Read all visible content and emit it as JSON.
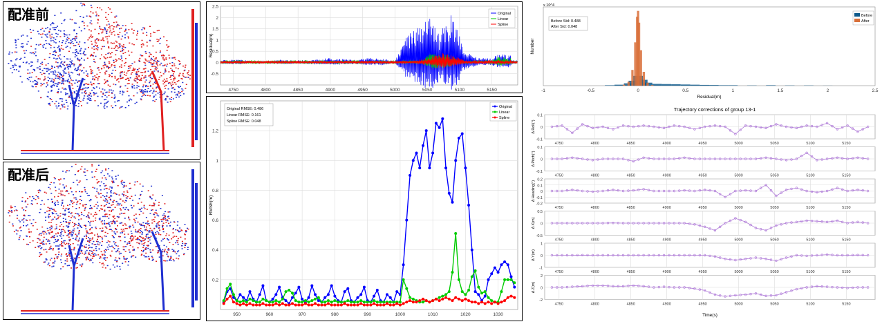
{
  "left_panels": {
    "top_label": "配准前",
    "bottom_label": "配准后",
    "colors": {
      "red": "#e02020",
      "blue": "#1f2fd0"
    }
  },
  "chart_data": [
    {
      "id": "residual-timeseries",
      "type": "line",
      "ylabel": "Residual(m)",
      "ylim": [
        -1,
        2.5
      ],
      "yticks": [
        -0.5,
        0,
        0.5,
        1,
        1.5,
        2,
        2.5
      ],
      "xlim": [
        4730,
        5190
      ],
      "xticks": [
        4750,
        4800,
        4850,
        4900,
        4950,
        5000,
        5050,
        5100,
        5150
      ],
      "legend": [
        "Original",
        "Linear",
        "Spline"
      ],
      "legend_position": "top-right",
      "colors": {
        "Original": "#0000ff",
        "Linear": "#00cc00",
        "Spline": "#ff0000"
      },
      "series": [
        {
          "name": "Original",
          "envelope": [
            [
              4730,
              0.1
            ],
            [
              4760,
              0.15
            ],
            [
              4780,
              0.05
            ],
            [
              4800,
              0.05
            ],
            [
              4820,
              0.12
            ],
            [
              4840,
              0.1
            ],
            [
              4860,
              0.1
            ],
            [
              4880,
              0.15
            ],
            [
              4900,
              0.2
            ],
            [
              4920,
              0.15
            ],
            [
              4940,
              0.12
            ],
            [
              4960,
              0.2
            ],
            [
              4980,
              0.2
            ],
            [
              5000,
              0.05
            ],
            [
              5020,
              1.3
            ],
            [
              5040,
              1.7
            ],
            [
              5050,
              2.1
            ],
            [
              5060,
              2.0
            ],
            [
              5070,
              1.3
            ],
            [
              5080,
              1.9
            ],
            [
              5090,
              2.2
            ],
            [
              5100,
              1.3
            ],
            [
              5110,
              0.5
            ],
            [
              5130,
              0.2
            ],
            [
              5150,
              0.2
            ],
            [
              5160,
              0.4
            ],
            [
              5180,
              0.35
            ]
          ]
        },
        {
          "name": "Linear",
          "envelope": [
            [
              4730,
              0.1
            ],
            [
              5020,
              0.1
            ],
            [
              5040,
              0.1
            ],
            [
              5060,
              0.5
            ],
            [
              5080,
              0.4
            ],
            [
              5100,
              0.1
            ],
            [
              5140,
              0.1
            ],
            [
              5160,
              0.25
            ],
            [
              5180,
              0.2
            ]
          ]
        },
        {
          "name": "Spline",
          "envelope": [
            [
              4730,
              0.08
            ],
            [
              5030,
              0.08
            ],
            [
              5050,
              0.2
            ],
            [
              5070,
              0.45
            ],
            [
              5090,
              0.3
            ],
            [
              5110,
              0.1
            ],
            [
              5180,
              0.12
            ]
          ]
        }
      ]
    },
    {
      "id": "rmse-epoch",
      "type": "line",
      "ylabel": "RMSE(m)",
      "ylim": [
        0,
        1.4
      ],
      "yticks": [
        0.2,
        0.4,
        0.6,
        0.8,
        1,
        1.2
      ],
      "xlim": [
        945,
        1036
      ],
      "xticks": [
        950,
        960,
        970,
        980,
        990,
        1000,
        1010,
        1020,
        1030
      ],
      "legend": [
        "Original",
        "Linear",
        "Spline"
      ],
      "legend_position": "top-right",
      "annotation": [
        "Original RMSE: 0.486",
        "Linear  RMSE: 0.161",
        "Spline  RMSE: 0.048"
      ],
      "colors": {
        "Original": "#0000ff",
        "Linear": "#00cc00",
        "Spline": "#ff0000"
      },
      "x": [
        946,
        947,
        948,
        949,
        950,
        951,
        952,
        953,
        954,
        955,
        956,
        957,
        958,
        959,
        960,
        961,
        962,
        963,
        964,
        965,
        966,
        967,
        968,
        969,
        970,
        971,
        972,
        973,
        974,
        975,
        976,
        977,
        978,
        979,
        980,
        981,
        982,
        983,
        984,
        985,
        986,
        987,
        988,
        989,
        990,
        991,
        992,
        993,
        994,
        995,
        996,
        997,
        998,
        999,
        1000,
        1001,
        1002,
        1003,
        1004,
        1005,
        1006,
        1007,
        1008,
        1009,
        1010,
        1011,
        1012,
        1013,
        1014,
        1015,
        1016,
        1017,
        1018,
        1019,
        1020,
        1021,
        1022,
        1023,
        1024,
        1025,
        1026,
        1027,
        1028,
        1029,
        1030,
        1031,
        1032,
        1033,
        1034,
        1035
      ],
      "series": [
        {
          "name": "Original",
          "values": [
            0.05,
            0.12,
            0.14,
            0.08,
            0.06,
            0.1,
            0.08,
            0.06,
            0.12,
            0.07,
            0.05,
            0.1,
            0.16,
            0.06,
            0.05,
            0.07,
            0.1,
            0.15,
            0.08,
            0.06,
            0.04,
            0.08,
            0.11,
            0.15,
            0.07,
            0.05,
            0.08,
            0.16,
            0.1,
            0.06,
            0.05,
            0.08,
            0.1,
            0.16,
            0.09,
            0.06,
            0.05,
            0.12,
            0.14,
            0.06,
            0.05,
            0.08,
            0.1,
            0.15,
            0.06,
            0.05,
            0.09,
            0.13,
            0.06,
            0.05,
            0.1,
            0.08,
            0.05,
            0.12,
            0.1,
            0.3,
            0.6,
            0.9,
            1.0,
            1.05,
            0.95,
            1.1,
            1.2,
            0.95,
            1.05,
            1.25,
            1.22,
            1.28,
            0.95,
            0.78,
            0.72,
            1.0,
            1.15,
            1.18,
            0.95,
            0.7,
            0.4,
            0.12,
            0.1,
            0.06,
            0.09,
            0.2,
            0.24,
            0.28,
            0.25,
            0.3,
            0.32,
            0.3,
            0.22,
            0.15
          ]
        },
        {
          "name": "Linear",
          "values": [
            0.06,
            0.14,
            0.17,
            0.1,
            0.06,
            0.05,
            0.06,
            0.05,
            0.07,
            0.06,
            0.05,
            0.05,
            0.07,
            0.06,
            0.05,
            0.05,
            0.06,
            0.05,
            0.07,
            0.12,
            0.13,
            0.11,
            0.06,
            0.05,
            0.05,
            0.06,
            0.05,
            0.06,
            0.07,
            0.08,
            0.05,
            0.05,
            0.06,
            0.05,
            0.06,
            0.05,
            0.05,
            0.05,
            0.06,
            0.05,
            0.05,
            0.05,
            0.06,
            0.05,
            0.05,
            0.05,
            0.06,
            0.05,
            0.05,
            0.05,
            0.05,
            0.05,
            0.05,
            0.05,
            0.05,
            0.2,
            0.14,
            0.08,
            0.07,
            0.06,
            0.05,
            0.05,
            0.06,
            0.05,
            0.06,
            0.07,
            0.08,
            0.09,
            0.1,
            0.12,
            0.25,
            0.51,
            0.2,
            0.12,
            0.1,
            0.13,
            0.22,
            0.26,
            0.15,
            0.11,
            0.12,
            0.08,
            0.06,
            0.05,
            0.05,
            0.12,
            0.2,
            0.2,
            0.2,
            0.18
          ]
        },
        {
          "name": "Spline",
          "values": [
            0.04,
            0.07,
            0.09,
            0.05,
            0.04,
            0.03,
            0.04,
            0.03,
            0.04,
            0.03,
            0.03,
            0.03,
            0.04,
            0.03,
            0.03,
            0.03,
            0.04,
            0.03,
            0.04,
            0.03,
            0.03,
            0.04,
            0.03,
            0.03,
            0.03,
            0.04,
            0.03,
            0.03,
            0.04,
            0.03,
            0.03,
            0.03,
            0.04,
            0.03,
            0.03,
            0.03,
            0.03,
            0.04,
            0.03,
            0.03,
            0.03,
            0.03,
            0.04,
            0.03,
            0.03,
            0.03,
            0.04,
            0.03,
            0.03,
            0.03,
            0.04,
            0.03,
            0.03,
            0.04,
            0.03,
            0.04,
            0.05,
            0.06,
            0.05,
            0.05,
            0.06,
            0.07,
            0.06,
            0.05,
            0.06,
            0.07,
            0.06,
            0.07,
            0.08,
            0.07,
            0.06,
            0.08,
            0.07,
            0.06,
            0.07,
            0.06,
            0.05,
            0.05,
            0.04,
            0.05,
            0.04,
            0.05,
            0.04,
            0.05,
            0.04,
            0.05,
            0.06,
            0.08,
            0.09,
            0.08
          ]
        }
      ]
    },
    {
      "id": "residual-histogram",
      "type": "bar",
      "xlabel": "Residual(m)",
      "ylabel": "Number",
      "y_exponent": "x 10^4",
      "xlim": [
        -1,
        2.5
      ],
      "xticks": [
        -1,
        -0.5,
        0,
        0.5,
        1,
        1.5,
        2,
        2.5
      ],
      "legend": [
        "Before",
        "After"
      ],
      "legend_position": "top-right",
      "annotation": [
        "Before Std: 0.488",
        "After  Std: 0.048"
      ],
      "colors": {
        "Before": "#0e5a8c",
        "After": "#d9703a"
      },
      "series": [
        {
          "name": "Before",
          "x": [
            -0.3,
            -0.2,
            -0.1,
            -0.05,
            0,
            0.05,
            0.1,
            0.2,
            0.3,
            0.4,
            0.5,
            0.6,
            0.7,
            0.8,
            0.9,
            1.0,
            1.2,
            1.4,
            1.6,
            1.8,
            2.0
          ],
          "values": [
            0.02,
            0.05,
            0.12,
            0.25,
            0.5,
            0.3,
            0.15,
            0.09,
            0.08,
            0.07,
            0.06,
            0.05,
            0.04,
            0.03,
            0.02,
            0.02,
            0.01,
            0.02,
            0.01,
            0.01,
            0.005
          ]
        },
        {
          "name": "After",
          "x": [
            -0.15,
            -0.1,
            -0.06,
            -0.03,
            -0.01,
            0,
            0.01,
            0.03,
            0.06,
            0.1,
            0.15
          ],
          "values": [
            0.05,
            0.2,
            0.8,
            2.2,
            3.5,
            3.8,
            3.2,
            1.8,
            0.7,
            0.15,
            0.03
          ]
        }
      ]
    },
    {
      "id": "trajectory-corrections",
      "type": "line",
      "title": "Trajectory corrections of group 13-1",
      "xlabel": "Time(s)",
      "xlim": [
        4730,
        5190
      ],
      "xticks": [
        4750,
        4800,
        4850,
        4900,
        4950,
        5000,
        5050,
        5100,
        5150
      ],
      "color": "#b07cd8",
      "subplots": [
        {
          "ylabel": "Δ Roll(°)",
          "ylim": [
            -0.1,
            0.1
          ],
          "yticks": [
            "0.1",
            "0",
            "-0.1"
          ],
          "values": [
            0.0,
            0.01,
            -0.05,
            0.02,
            -0.01,
            0.0,
            -0.02,
            0.01,
            0.0,
            0.01,
            0.0,
            -0.01,
            0.01,
            0.0,
            -0.02,
            0.0,
            0.01,
            0.0,
            -0.06,
            0.01,
            0.0,
            -0.01,
            0.02,
            0.0,
            -0.01,
            0.01,
            0.0,
            0.03,
            -0.02,
            0.01,
            -0.04,
            0.0
          ]
        },
        {
          "ylabel": "Δ Pitch(°)",
          "ylim": [
            -0.1,
            0.1
          ],
          "yticks": [
            "0.1",
            "0",
            "-0.1"
          ],
          "values": [
            0.0,
            0.0,
            0.01,
            0.0,
            -0.01,
            0.0,
            0.0,
            0.0,
            -0.02,
            0.01,
            0.0,
            0.0,
            0.0,
            0.01,
            0.0,
            0.0,
            0.0,
            0.0,
            0.0,
            0.0,
            0.0,
            0.01,
            0.0,
            -0.01,
            0.0,
            0.05,
            -0.01,
            0.0,
            0.01,
            0.0,
            0.01,
            0.0
          ]
        },
        {
          "ylabel": "Δ Heading(°)",
          "ylim": [
            -0.2,
            0.2
          ],
          "yticks": [
            "0.2",
            "0.1",
            "0",
            "-0.1",
            "-0.2"
          ],
          "values": [
            0.0,
            0.0,
            0.02,
            0.0,
            -0.01,
            0.0,
            0.02,
            0.0,
            0.01,
            0.03,
            0.0,
            0.0,
            0.0,
            0.01,
            0.0,
            0.02,
            0.0,
            -0.1,
            0.0,
            0.01,
            0.0,
            0.1,
            -0.08,
            0.02,
            0.05,
            0.0,
            -0.02,
            0.0,
            0.05,
            0.0,
            0.02,
            0.0
          ]
        },
        {
          "ylabel": "Δ X(m)",
          "ylim": [
            -0.5,
            0.5
          ],
          "yticks": [
            "0.5",
            "0",
            "-0.5"
          ],
          "values": [
            0.0,
            0.0,
            0.0,
            0.0,
            0.0,
            0.0,
            0.01,
            0.0,
            0.0,
            0.0,
            0.0,
            0.0,
            0.0,
            0.0,
            -0.05,
            -0.15,
            -0.3,
            0.0,
            0.2,
            0.05,
            -0.2,
            -0.3,
            -0.1,
            0.0,
            0.05,
            0.1,
            0.08,
            0.05,
            0.1,
            0.0,
            0.05,
            0.0
          ]
        },
        {
          "ylabel": "Δ Y(m)",
          "ylim": [
            -1,
            1
          ],
          "yticks": [
            "1",
            "0",
            "-1"
          ],
          "values": [
            0.0,
            0.0,
            0.0,
            0.01,
            0.0,
            0.0,
            0.0,
            0.0,
            0.0,
            0.0,
            0.0,
            0.0,
            0.0,
            0.0,
            0.0,
            0.0,
            -0.1,
            -0.3,
            -0.4,
            -0.3,
            -0.2,
            -0.3,
            -0.45,
            -0.2,
            0.0,
            -0.05,
            0.0,
            0.05,
            0.0,
            0.0,
            0.02,
            0.0
          ]
        },
        {
          "ylabel": "Δ Z(m)",
          "ylim": [
            -2,
            2
          ],
          "yticks": [
            "2",
            "0",
            "-2"
          ],
          "values": [
            0.0,
            0.0,
            0.1,
            0.2,
            0.3,
            0.3,
            0.2,
            0.2,
            0.3,
            0.2,
            0.0,
            0.1,
            0.0,
            0.0,
            -0.2,
            -0.5,
            -1.2,
            -1.5,
            -1.3,
            -1.2,
            -1.0,
            -1.4,
            -1.3,
            -0.8,
            -0.3,
            0.0,
            0.2,
            0.1,
            0.0,
            -0.1,
            0.0,
            0.0
          ]
        }
      ]
    }
  ]
}
